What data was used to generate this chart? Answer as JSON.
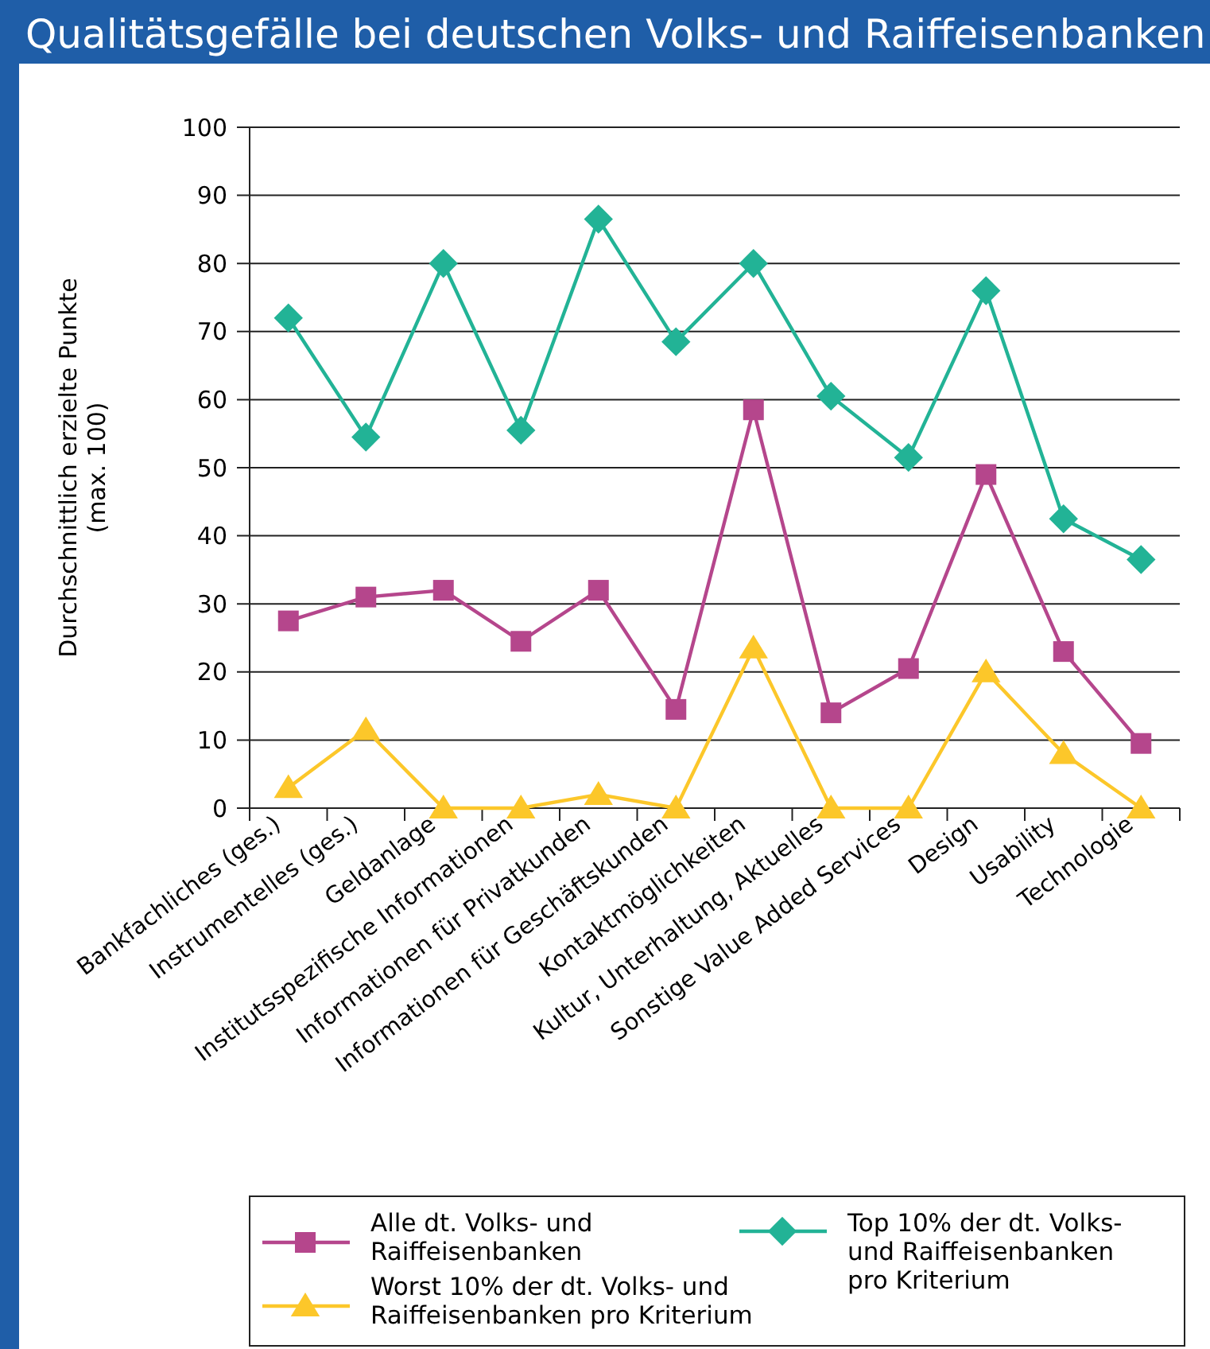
{
  "chart_data": {
    "type": "line",
    "title": "Qualitätsgefälle bei deutschen Volks- und Raiffeisenbanken",
    "ylabel": "Durchschnittlich erzielte Punkte\n(max. 100)",
    "categories": [
      "Bankfachliches (ges.)",
      "Instrumentelles (ges.)",
      "Geldanlage",
      "Institutsspezifische Informationen",
      "Informationen für Privatkunden",
      "Informationen für Geschäftskunden",
      "Kontaktmöglichkeiten",
      "Kultur, Unterhaltung, Aktuelles",
      "Sonstige Value Added Services",
      "Design",
      "Usability",
      "Technologie"
    ],
    "series": [
      {
        "name": "Alle dt. Volks- und Raiffeisenbanken",
        "color": "#b5468c",
        "marker": "square",
        "values": [
          27.5,
          31,
          32,
          24.5,
          32,
          14.5,
          58.5,
          14,
          20.5,
          49,
          23,
          9.5
        ]
      },
      {
        "name": "Worst 10% der dt. Volks- und Raiffeisenbanken pro Kriterium",
        "color": "#fcc72a",
        "marker": "triangle",
        "values": [
          3,
          11.5,
          0,
          0,
          2,
          0,
          23.5,
          0,
          0,
          20,
          8,
          0
        ]
      },
      {
        "name": "Top 10% der dt. Volks- und Raiffeisenbanken pro Kriterium",
        "color": "#22b396",
        "marker": "diamond",
        "values": [
          72,
          54.5,
          80,
          55.5,
          86.5,
          68.5,
          80,
          60.5,
          51.5,
          76,
          42.5,
          36.5
        ]
      }
    ],
    "ylim": [
      0,
      100
    ],
    "yticks": [
      0,
      10,
      20,
      30,
      40,
      50,
      60,
      70,
      80,
      90,
      100
    ],
    "grid": "y",
    "legend": "bottom",
    "line_style": "solid"
  }
}
